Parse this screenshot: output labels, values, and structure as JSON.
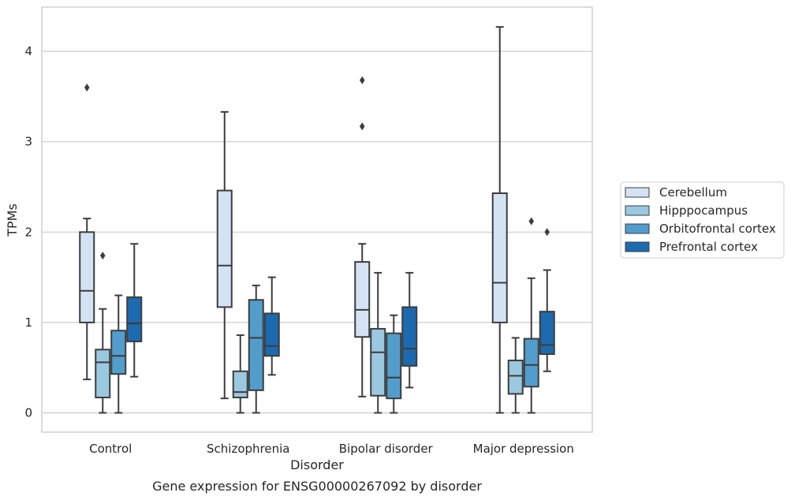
{
  "chart_data": {
    "type": "box",
    "title": "",
    "caption": "Gene expression for ENSG00000267092 by disorder",
    "xlabel": "Disorder",
    "ylabel": "TPMs",
    "ylim": [
      -0.2,
      4.5
    ],
    "yticks": [
      0,
      1,
      2,
      3,
      4
    ],
    "grid": "horizontal",
    "legend_position": "right",
    "categories": [
      "Control",
      "Schizophrenia",
      "Bipolar disorder",
      "Major depression"
    ],
    "series": [
      {
        "name": "Cerebellum",
        "color": "#d3e3f3",
        "boxes": [
          {
            "whislo": 0.37,
            "q1": 1.0,
            "med": 1.35,
            "q3": 2.0,
            "whishi": 2.15,
            "fliers": [
              3.6
            ]
          },
          {
            "whislo": 0.16,
            "q1": 1.17,
            "med": 1.63,
            "q3": 2.46,
            "whishi": 3.33,
            "fliers": []
          },
          {
            "whislo": 0.18,
            "q1": 0.84,
            "med": 1.14,
            "q3": 1.67,
            "whishi": 1.87,
            "fliers": [
              3.17,
              3.68
            ]
          },
          {
            "whislo": 0.0,
            "q1": 1.0,
            "med": 1.44,
            "q3": 2.43,
            "whishi": 4.27,
            "fliers": []
          }
        ]
      },
      {
        "name": "Hipppocampus",
        "color": "#9ac8e0",
        "boxes": [
          {
            "whislo": 0.0,
            "q1": 0.17,
            "med": 0.56,
            "q3": 0.7,
            "whishi": 1.15,
            "fliers": [
              1.74
            ]
          },
          {
            "whislo": 0.0,
            "q1": 0.17,
            "med": 0.23,
            "q3": 0.46,
            "whishi": 0.86,
            "fliers": []
          },
          {
            "whislo": 0.0,
            "q1": 0.19,
            "med": 0.67,
            "q3": 0.93,
            "whishi": 1.55,
            "fliers": []
          },
          {
            "whislo": 0.0,
            "q1": 0.21,
            "med": 0.41,
            "q3": 0.58,
            "whishi": 0.83,
            "fliers": []
          }
        ]
      },
      {
        "name": "Orbitofrontal cortex",
        "color": "#529dcc",
        "boxes": [
          {
            "whislo": 0.0,
            "q1": 0.43,
            "med": 0.63,
            "q3": 0.91,
            "whishi": 1.3,
            "fliers": []
          },
          {
            "whislo": 0.0,
            "q1": 0.25,
            "med": 0.83,
            "q3": 1.25,
            "whishi": 1.41,
            "fliers": []
          },
          {
            "whislo": 0.0,
            "q1": 0.16,
            "med": 0.39,
            "q3": 0.88,
            "whishi": 1.08,
            "fliers": []
          },
          {
            "whislo": 0.0,
            "q1": 0.29,
            "med": 0.53,
            "q3": 0.82,
            "whishi": 1.49,
            "fliers": [
              2.12
            ]
          }
        ]
      },
      {
        "name": "Prefrontal cortex",
        "color": "#1c6aaf",
        "boxes": [
          {
            "whislo": 0.4,
            "q1": 0.79,
            "med": 0.99,
            "q3": 1.28,
            "whishi": 1.87,
            "fliers": []
          },
          {
            "whislo": 0.42,
            "q1": 0.63,
            "med": 0.74,
            "q3": 1.1,
            "whishi": 1.5,
            "fliers": []
          },
          {
            "whislo": 0.28,
            "q1": 0.52,
            "med": 0.71,
            "q3": 1.17,
            "whishi": 1.55,
            "fliers": []
          },
          {
            "whislo": 0.46,
            "q1": 0.65,
            "med": 0.75,
            "q3": 1.12,
            "whishi": 1.58,
            "fliers": [
              2.0
            ]
          }
        ]
      }
    ]
  }
}
